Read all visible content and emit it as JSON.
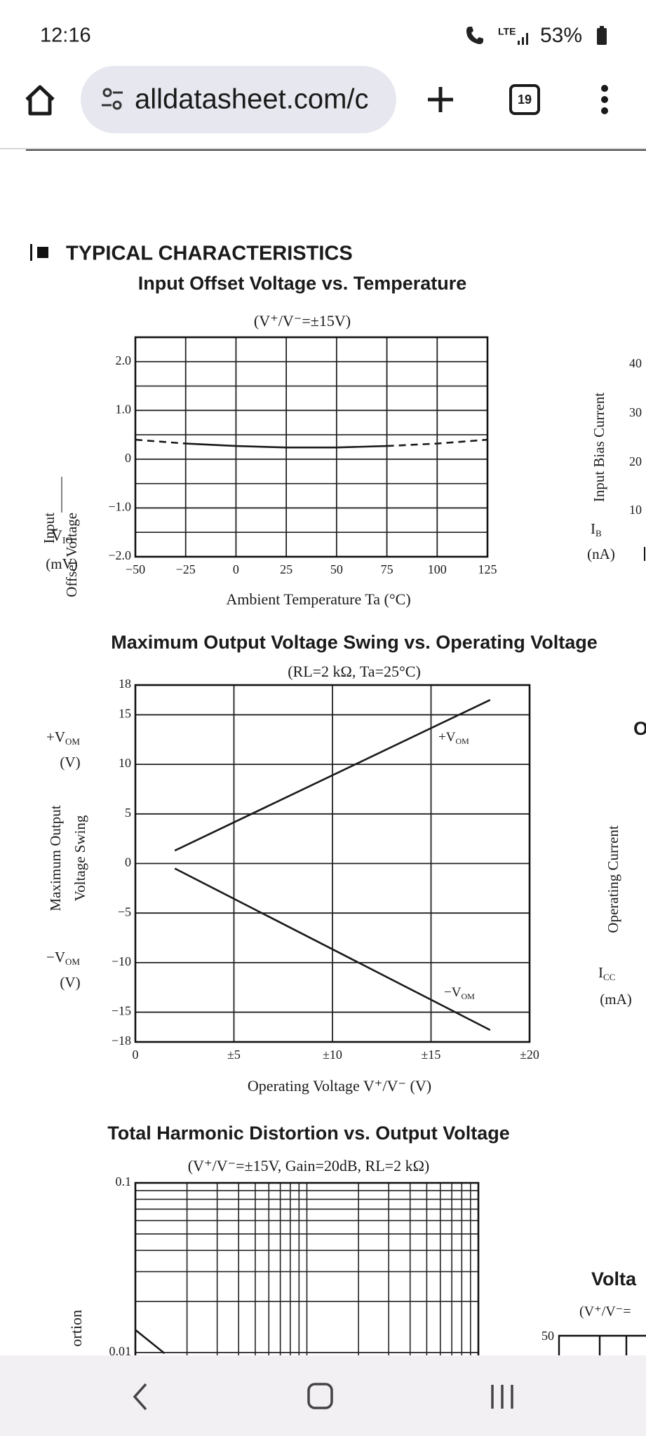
{
  "status_bar": {
    "time": "12:16",
    "network": "LTE",
    "battery": "53%"
  },
  "toolbar": {
    "url": "alldatasheet.com/c",
    "tab_count": 19
  },
  "section_title": "TYPICAL CHARACTERISTICS",
  "chart_data": [
    {
      "type": "line",
      "title": "Input Offset Voltage vs. Temperature",
      "subtitle": "(V⁺/V⁻=±15V)",
      "xlabel": "Ambient Temperature   Ta (°C)",
      "ylabel": [
        "Input",
        "Offset Voltage"
      ],
      "ylabel_symbol": {
        "main": "V",
        "sub": "IO"
      },
      "ylabel_unit": "(mV)",
      "xlim": [
        -50,
        125
      ],
      "xticks": [
        {
          "value": -50,
          "label": "−50"
        },
        {
          "value": -25,
          "label": "−25"
        },
        0,
        25,
        50,
        75,
        100,
        125
      ],
      "ylim": [
        -2,
        2.5
      ],
      "yticks": [
        {
          "value": 2,
          "label": "2.0"
        },
        {
          "value": 1,
          "label": "1.0"
        },
        0,
        {
          "value": -1,
          "label": "−1.0"
        },
        {
          "value": -2,
          "label": "−2.0"
        }
      ],
      "y_minor_ticks": [
        1.5,
        0.5,
        -0.5,
        -1.5
      ],
      "grid": true,
      "color": "#1a1a1a",
      "series": [
        {
          "x": [
            -50,
            -25
          ],
          "values": [
            0.4,
            0.32
          ],
          "dashed": true
        },
        {
          "x": [
            -25,
            0,
            25,
            50,
            75
          ],
          "values": [
            0.32,
            0.27,
            0.24,
            0.24,
            0.27
          ],
          "dashed": false
        },
        {
          "x": [
            75,
            100,
            125
          ],
          "values": [
            0.27,
            0.32,
            0.4
          ],
          "dashed": true
        }
      ]
    },
    {
      "type": "line",
      "title": "Maximum Output Voltage Swing vs. Operating Voltage",
      "subtitle": "(RL=2 kΩ, Ta=25°C)",
      "xlabel": "Operating Voltage   V⁺/V⁻ (V)",
      "ylabel": [
        "Maximum Output",
        "Voltage Swing"
      ],
      "upper_unit_label": {
        "main": "+V",
        "sub": "OM",
        "unit": "(V)"
      },
      "lower_unit_label": {
        "main": "−V",
        "sub": "OM",
        "unit": "(V)"
      },
      "xlim": [
        0,
        20
      ],
      "xticks": [
        0,
        {
          "value": 5,
          "label": "±5"
        },
        {
          "value": 10,
          "label": "±10"
        },
        {
          "value": 15,
          "label": "±15"
        },
        {
          "value": 20,
          "label": "±20"
        }
      ],
      "ylim": [
        -18,
        18
      ],
      "yticks": [
        18,
        15,
        10,
        5,
        0,
        {
          "value": -5,
          "label": "−5"
        },
        {
          "value": -10,
          "label": "−10"
        },
        {
          "value": -15,
          "label": "−15"
        },
        {
          "value": -18,
          "label": "−18"
        }
      ],
      "grid": true,
      "color": "#1a1a1a",
      "series": [
        {
          "x": [
            2,
            18
          ],
          "values": [
            1.3,
            16.5
          ],
          "dashed": false,
          "label": {
            "main": "+V",
            "sub": "OM"
          }
        },
        {
          "x": [
            2,
            18
          ],
          "values": [
            -0.5,
            -16.8
          ],
          "dashed": false,
          "label": {
            "main": "−V",
            "sub": "OM"
          }
        }
      ]
    },
    {
      "type": "line",
      "title": "Total Harmonic Distortion vs. Output Voltage",
      "subtitle": "(V⁺/V⁻=±15V, Gain=20dB, RL=2 kΩ)",
      "ylabel": [
        "ortion"
      ],
      "log_x": true,
      "log_y": true,
      "xlim": [
        0.1,
        10
      ],
      "x_minor_ticks": [
        0.2,
        0.3,
        0.4,
        0.5,
        0.6,
        0.7,
        0.8,
        0.9,
        1,
        2,
        3,
        4,
        5,
        6,
        7,
        8,
        9
      ],
      "ylim": [
        0.01,
        0.1
      ],
      "yticks": [
        0.1,
        0.01
      ],
      "y_minor_ticks": [
        0.09,
        0.08,
        0.07,
        0.06,
        0.05,
        0.04,
        0.03,
        0.02
      ],
      "grid": true,
      "color": "#1a1a1a",
      "series": [
        {
          "x": [
            0.1,
            0.148
          ],
          "values": [
            0.0136,
            0.0099
          ],
          "dashed": false
        }
      ]
    }
  ],
  "clipped_right": {
    "bias_label": "Input Bias Current",
    "bias_symbol": {
      "main": "I",
      "sub": "B"
    },
    "bias_unit": "(nA)",
    "bias_ticks": [
      40,
      30,
      20,
      10
    ],
    "next_title": "O",
    "current_label": "Operating Current",
    "current_symbol": {
      "main": "I",
      "sub": "CC"
    },
    "current_unit": "(mA)",
    "voltage_title": "Volta",
    "voltage_subtitle": "(V⁺/V⁻=",
    "voltage_tick": 50
  }
}
